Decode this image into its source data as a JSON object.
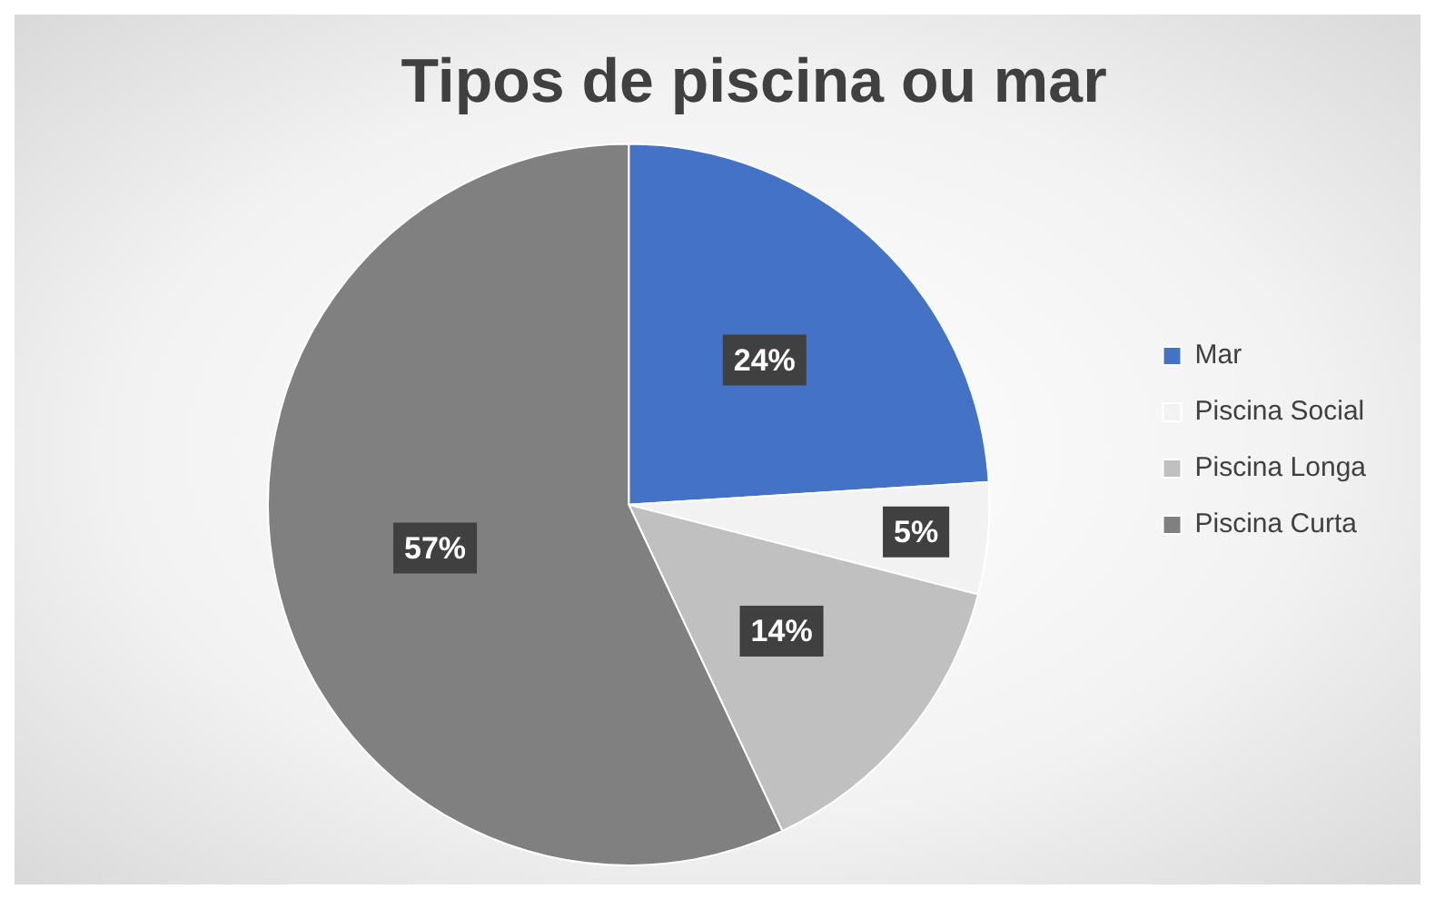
{
  "chart_data": {
    "type": "pie",
    "title": "Tipos de piscina ou mar",
    "categories": [
      "Mar",
      "Piscina Social",
      "Piscina Longa",
      "Piscina Curta"
    ],
    "values": [
      24,
      5,
      14,
      57
    ],
    "colors": [
      "#4472c4",
      "#f2f2f2",
      "#c0c0c0",
      "#808080"
    ],
    "value_labels": [
      "24%",
      "5%",
      "14%",
      "57%"
    ],
    "legend": "right"
  }
}
